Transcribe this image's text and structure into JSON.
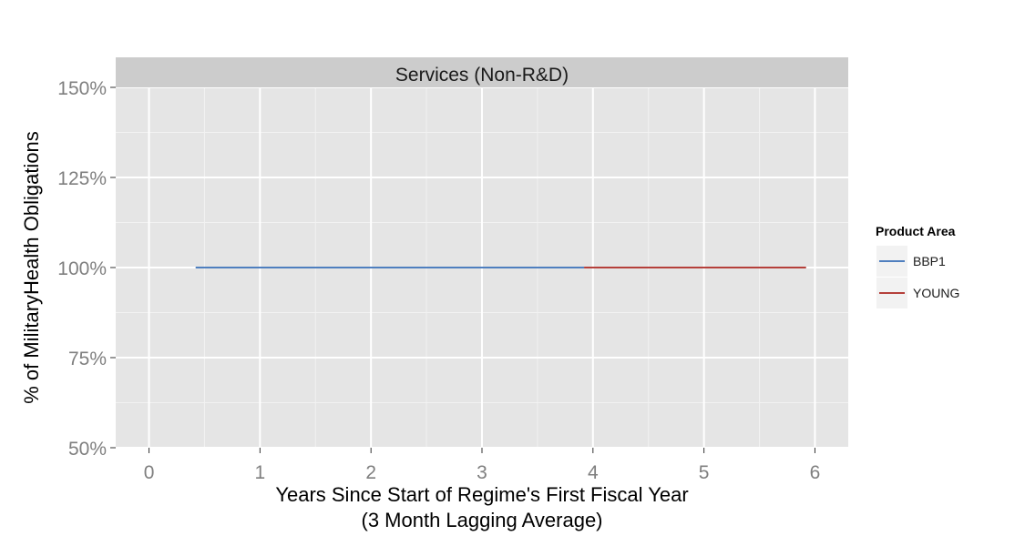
{
  "chart_data": {
    "type": "line",
    "panel_title": "Services (Non-R&D)",
    "xlabel": "Years Since Start of Regime's First Fiscal Year",
    "xlabel_line2": "(3 Month Lagging Average)",
    "ylabel": "% of MilitaryHealth Obligations",
    "xlim": [
      -0.3,
      6.3
    ],
    "ylim": [
      0.5,
      1.5
    ],
    "x_ticks": [
      0,
      1,
      2,
      3,
      4,
      5,
      6
    ],
    "x_tick_labels": [
      "0",
      "1",
      "2",
      "3",
      "4",
      "5",
      "6"
    ],
    "y_ticks": [
      0.5,
      0.75,
      1.0,
      1.25,
      1.5
    ],
    "y_tick_labels": [
      "50%",
      "75%",
      "100%",
      "125%",
      "150%"
    ],
    "grid": true,
    "legend_title": "Product Area",
    "legend_position": "right",
    "series": [
      {
        "name": "BBP1",
        "color": "#4f7fbf",
        "points": [
          [
            0.42,
            1.0
          ],
          [
            3.92,
            1.0
          ]
        ]
      },
      {
        "name": "YOUNG",
        "color": "#b5403b",
        "points": [
          [
            3.92,
            1.0
          ],
          [
            5.92,
            1.0
          ]
        ]
      }
    ]
  },
  "colors": {
    "panel_background": "#e5e5e5",
    "strip_background": "#cccccc",
    "grid_major": "#ffffff",
    "grid_minor": "#f2f2f2",
    "legend_key_background": "#f2f2f2"
  }
}
